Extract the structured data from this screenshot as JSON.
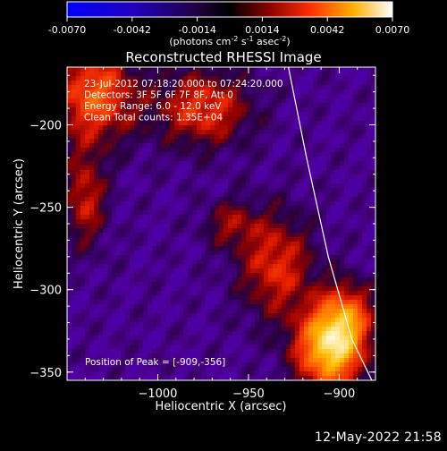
{
  "colors": {
    "background": "#000000",
    "text": "#ffffff",
    "limb_line": "#ffffff",
    "colormap_name": "Red-Temperature / Blue-White",
    "colorbar_low": "#0000ff",
    "colorbar_mid": "#000000",
    "colorbar_high": "#ffffff"
  },
  "colorbar": {
    "tick_labels": [
      "-0.0070",
      "-0.0042",
      "-0.0014",
      "0.0014",
      "0.0042",
      "0.0070"
    ],
    "range": [
      -0.007,
      0.007
    ],
    "unit_label_main": "(photons cm",
    "unit_sup1": "-2",
    "unit_mid1": " s",
    "unit_sup2": "-1",
    "unit_mid2": " asec",
    "unit_sup3": "-2",
    "unit_tail": ")"
  },
  "chart_data": {
    "type": "heatmap",
    "title": "Reconstructed RHESSI Image",
    "xlabel": "Heliocentric X (arcsec)",
    "ylabel": "Heliocentric Y (arcsec)",
    "xlim": [
      -1050,
      -880
    ],
    "ylim": [
      -355,
      -165
    ],
    "x_ticks": [
      -1000,
      -950,
      -900
    ],
    "x_tick_labels": [
      "−1000",
      "−950",
      "−900"
    ],
    "y_ticks": [
      -200,
      -250,
      -300,
      -350
    ],
    "y_tick_labels": [
      "−200",
      "−250",
      "−300",
      "−350"
    ],
    "annotations": [
      "23-Jul-2012 07:18:20.000 to 07:24:20.000",
      "Detectors: 3F 5F 6F 7F 8F, Att 0",
      "Energy Range: 6.0 - 12.0 keV",
      "Clean    Total counts: 1.35E+04"
    ],
    "peak_label": "Position of Peak = [-909,-356]",
    "peak": {
      "x": -909,
      "y": -356
    },
    "limb": [
      {
        "x": -928,
        "y": -165
      },
      {
        "x": -918,
        "y": -220
      },
      {
        "x": -906,
        "y": -280
      },
      {
        "x": -893,
        "y": -330
      },
      {
        "x": -882,
        "y": -355
      }
    ],
    "sources": [
      {
        "x": -905,
        "y": -335,
        "sx": 13,
        "sy": 18,
        "amp": 0.0068
      },
      {
        "x": -895,
        "y": -315,
        "sx": 10,
        "sy": 14,
        "amp": 0.003
      },
      {
        "x": -935,
        "y": -285,
        "sx": 14,
        "sy": 22,
        "amp": 0.0032
      },
      {
        "x": -1035,
        "y": -182,
        "sx": 16,
        "sy": 20,
        "amp": 0.0042
      },
      {
        "x": -975,
        "y": -190,
        "sx": 18,
        "sy": 16,
        "amp": 0.0034
      },
      {
        "x": -1040,
        "y": -245,
        "sx": 8,
        "sy": 20,
        "amp": 0.0028
      },
      {
        "x": -960,
        "y": -260,
        "sx": 10,
        "sy": 10,
        "amp": 0.002
      }
    ],
    "background_level": -0.0011
  },
  "footer": {
    "timestamp": "12-May-2022 21:58"
  }
}
